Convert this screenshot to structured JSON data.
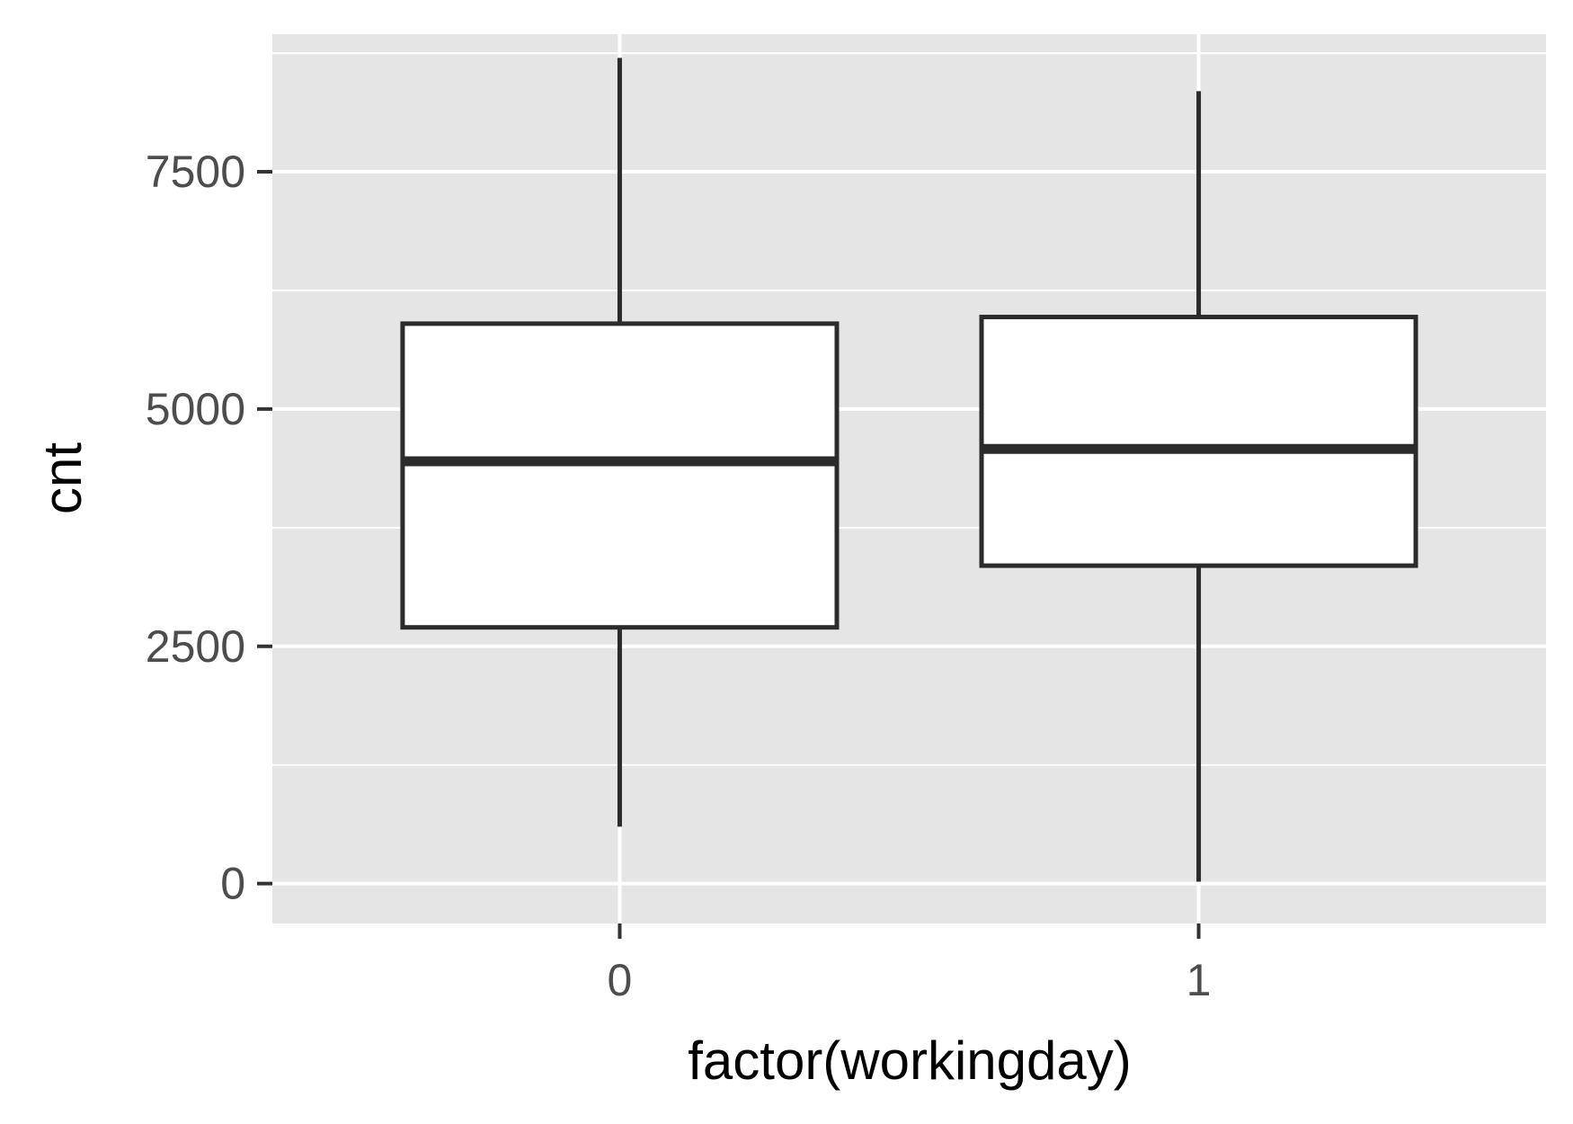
{
  "chart_data": {
    "type": "boxplot",
    "title": "",
    "xlabel": "factor(workingday)",
    "ylabel": "cnt",
    "ylim": [
      -420,
      8950
    ],
    "yticks": [
      0,
      2500,
      5000,
      7500
    ],
    "ytick_labels": [
      "0",
      "2500",
      "5000",
      "7500"
    ],
    "categories": [
      "0",
      "1"
    ],
    "boxes": [
      {
        "category": "0",
        "whisker_low": 600,
        "q1": 2700,
        "median": 4450,
        "q3": 5900,
        "whisker_high": 8700
      },
      {
        "category": "1",
        "whisker_low": 20,
        "q1": 3350,
        "median": 4580,
        "q3": 5970,
        "whisker_high": 8350
      }
    ],
    "grid": true,
    "legend": "none",
    "colors": {
      "panel": "#e5e5e5",
      "grid": "#ffffff",
      "box_fill": "#ffffff",
      "box_line": "#2b2b2b",
      "tick_text": "#4d4d4d"
    }
  }
}
